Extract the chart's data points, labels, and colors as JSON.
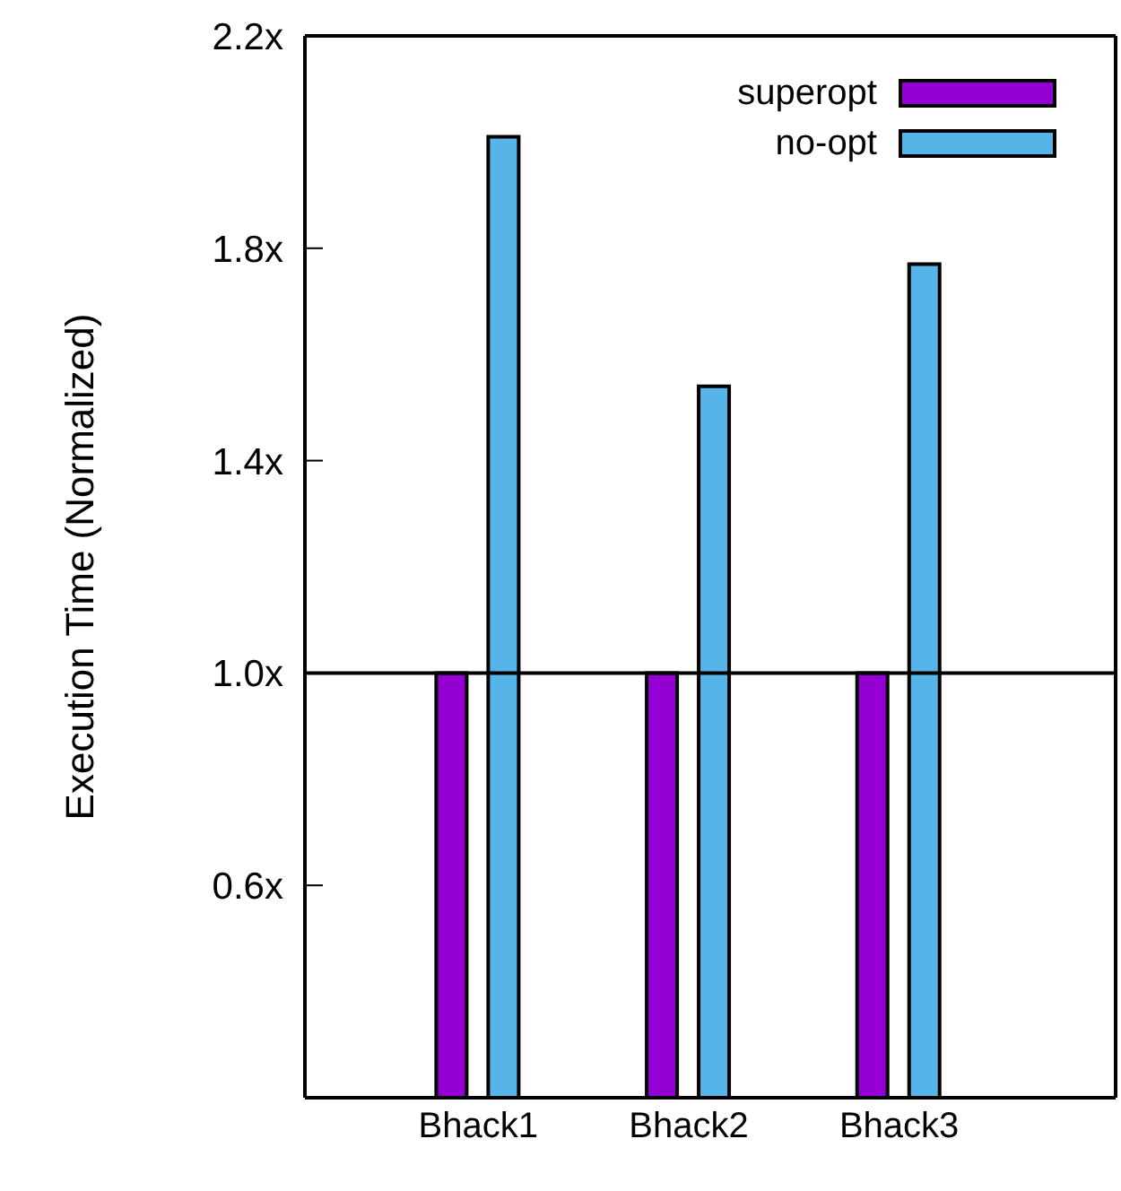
{
  "chart_data": {
    "type": "bar",
    "ylabel": "Execution Time (Normalized)",
    "categories": [
      "Bhack1",
      "Bhack2",
      "Bhack3"
    ],
    "series": [
      {
        "name": "superopt",
        "color": "#9400d3",
        "values": [
          1.0,
          1.0,
          1.0
        ]
      },
      {
        "name": "no-opt",
        "color": "#56b4e9",
        "values": [
          2.01,
          1.54,
          1.77
        ]
      }
    ],
    "ylim": [
      0.2,
      2.2
    ],
    "yticks": [
      {
        "value": 0.6,
        "label": "0.6x"
      },
      {
        "value": 1.0,
        "label": "1.0x"
      },
      {
        "value": 1.4,
        "label": "1.4x"
      },
      {
        "value": 1.8,
        "label": "1.8x"
      },
      {
        "value": 2.2,
        "label": "2.2x"
      }
    ],
    "ref_lines": [
      {
        "axis": "y",
        "value": 1.0,
        "color": "#000000"
      }
    ],
    "grid": false,
    "legend": "top right"
  }
}
